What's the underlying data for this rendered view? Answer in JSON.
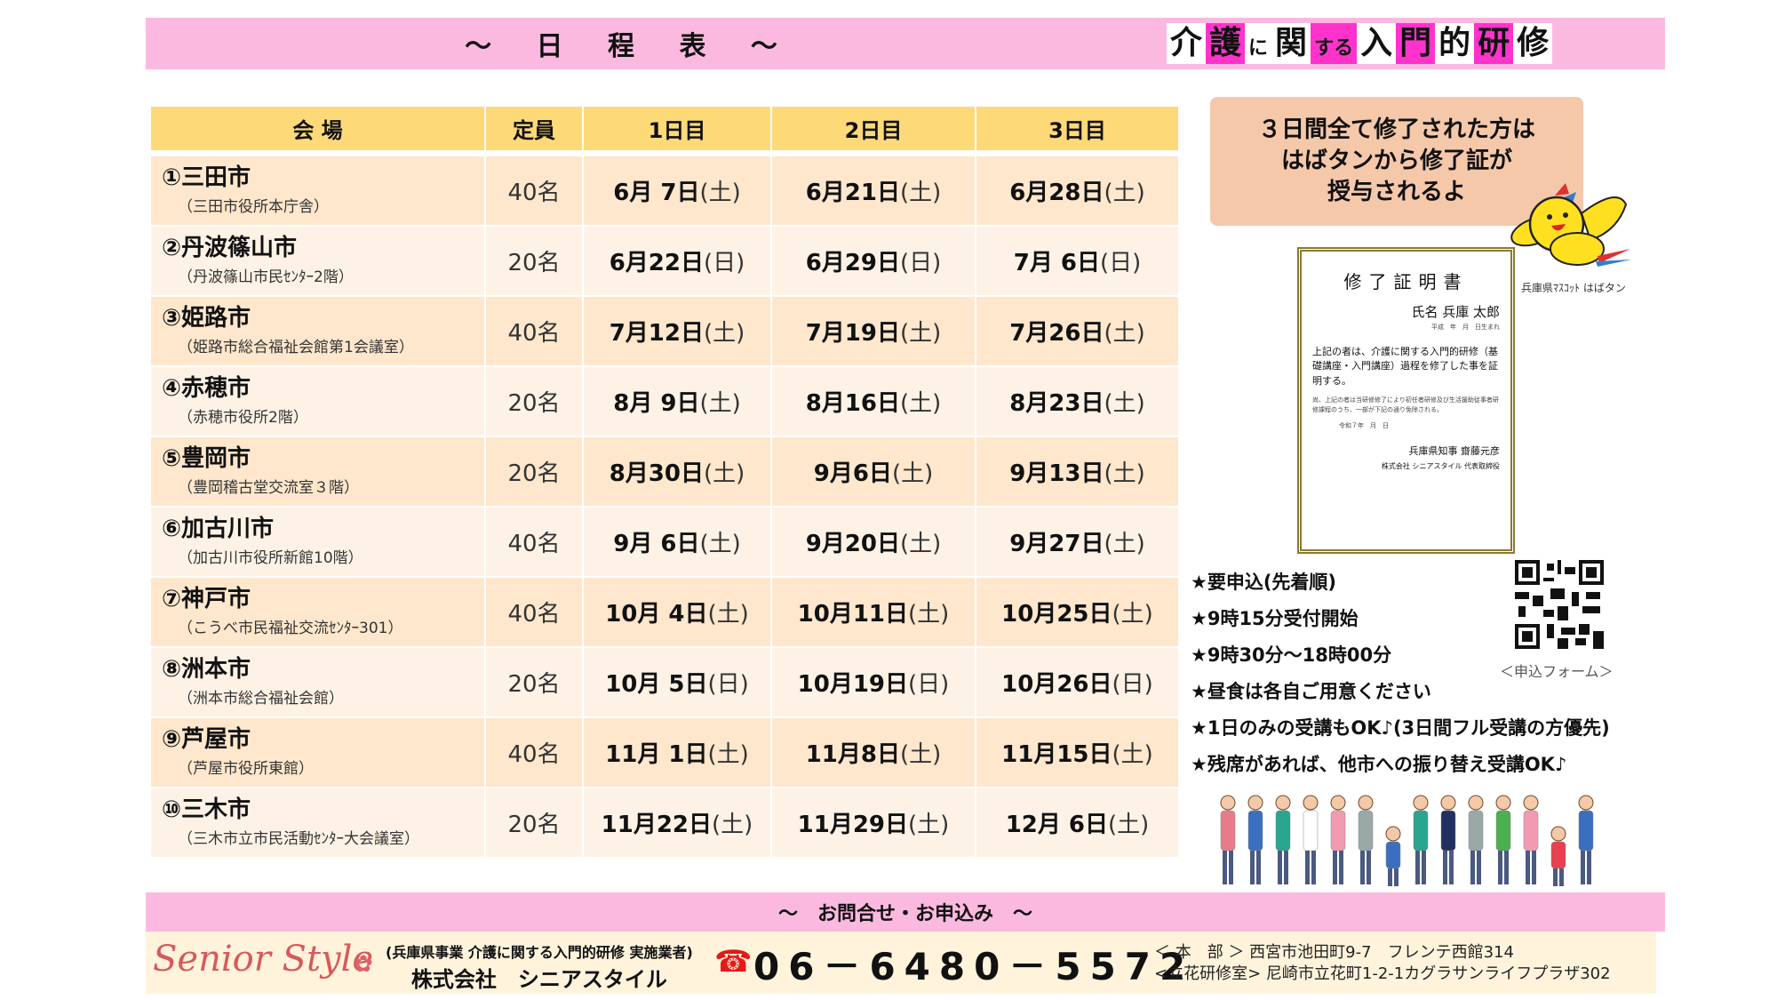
{
  "header": {
    "title": "～ 日 程 表 ～",
    "badge": [
      {
        "text": "介",
        "style": "w"
      },
      {
        "text": "護",
        "style": "pk"
      },
      {
        "text": "に",
        "style": "w sm"
      },
      {
        "text": "関",
        "style": "w"
      },
      {
        "text": "する",
        "style": "pk sm"
      },
      {
        "text": "入",
        "style": "w"
      },
      {
        "text": "門",
        "style": "pk"
      },
      {
        "text": "的",
        "style": "w"
      },
      {
        "text": "研",
        "style": "pk"
      },
      {
        "text": "修",
        "style": "w"
      }
    ]
  },
  "table": {
    "headers": [
      "会 場",
      "定員",
      "1日目",
      "2日目",
      "3日目"
    ],
    "rows": [
      {
        "name": "①三田市",
        "sub": "（三田市役所本庁舎）",
        "cap": "40名",
        "d1": "6月 7日",
        "w1": "(土)",
        "d2": "6月21日",
        "w2": "(土)",
        "d3": "6月28日",
        "w3": "(土)"
      },
      {
        "name": "②丹波篠山市",
        "sub": "（丹波篠山市民ｾﾝﾀｰ2階）",
        "cap": "20名",
        "d1": "6月22日",
        "w1": "(日)",
        "d2": "6月29日",
        "w2": "(日)",
        "d3": "7月 6日",
        "w3": "(日)"
      },
      {
        "name": "③姫路市",
        "sub": "（姫路市総合福祉会館第1会議室）",
        "cap": "40名",
        "d1": "7月12日",
        "w1": "(土)",
        "d2": "7月19日",
        "w2": "(土)",
        "d3": "7月26日",
        "w3": "(土)"
      },
      {
        "name": "④赤穂市",
        "sub": "（赤穂市役所2階）",
        "cap": "20名",
        "d1": "8月 9日",
        "w1": "(土)",
        "d2": "8月16日",
        "w2": "(土)",
        "d3": "8月23日",
        "w3": "(土)"
      },
      {
        "name": "⑤豊岡市",
        "sub": "（豊岡稽古堂交流室３階）",
        "cap": "20名",
        "d1": "8月30日",
        "w1": "(土)",
        "d2": "9月6日",
        "w2": "(土)",
        "d3": "9月13日",
        "w3": "(土)"
      },
      {
        "name": "⑥加古川市",
        "sub": "（加古川市役所新館10階）",
        "cap": "40名",
        "d1": "9月 6日",
        "w1": "(土)",
        "d2": "9月20日",
        "w2": "(土)",
        "d3": "9月27日",
        "w3": "(土)"
      },
      {
        "name": "⑦神戸市",
        "sub": "（こうべ市民福祉交流ｾﾝﾀｰ301）",
        "cap": "40名",
        "d1": "10月 4日",
        "w1": "(土)",
        "d2": "10月11日",
        "w2": "(土)",
        "d3": "10月25日",
        "w3": "(土)"
      },
      {
        "name": "⑧洲本市",
        "sub": "（洲本市総合福祉会館）",
        "cap": "20名",
        "d1": "10月 5日",
        "w1": "(日)",
        "d2": "10月19日",
        "w2": "(日)",
        "d3": "10月26日",
        "w3": "(日)"
      },
      {
        "name": "⑨芦屋市",
        "sub": "（芦屋市役所東館）",
        "cap": "40名",
        "d1": "11月 1日",
        "w1": "(土)",
        "d2": "11月8日",
        "w2": "(土)",
        "d3": "11月15日",
        "w3": "(土)"
      },
      {
        "name": "⑩三木市",
        "sub": "（三木市立市民活動ｾﾝﾀｰ大会議室）",
        "cap": "20名",
        "d1": "11月22日",
        "w1": "(土)",
        "d2": "11月29日",
        "w2": "(土)",
        "d3": "12月 6日",
        "w3": "(土)"
      }
    ]
  },
  "callout": {
    "lines": [
      "３日間全て修了された方は",
      "はばタンから修了証が",
      "授与されるよ"
    ]
  },
  "mascot": {
    "caption": "兵庫県ﾏｽｺｯﾄ はばタン"
  },
  "certificate": {
    "title": "修了証明書",
    "name": "氏名 兵庫 太郎",
    "born": "平成　年　月　日生まれ",
    "body": "上記の者は、介護に関する入門的研修（基礎講座・入門講座）過程を修了した事を証明する。",
    "note": "尚、上記の者は当研修修了により初任者研修及び生活援助従事者研修課程のうち、一部が下記の通り免除される。",
    "date": "令和７年　月　日",
    "signer": "兵庫県知事 齋藤元彦",
    "company": "株式会社 シニアスタイル 代表取締役"
  },
  "notes": [
    "★要申込(先着順)",
    "★9時15分受付開始",
    "★9時30分～18時00分",
    "★昼食は各自ご用意ください",
    "★1日のみの受講もOK♪(3日間フル受講の方優先)",
    "★残席があれば、他市への振り替え受講OK♪"
  ],
  "qr": {
    "caption": "＜申込フォーム＞"
  },
  "footer": {
    "bar_title": "～　お問合せ・お申込み　～",
    "logo": "Senior Style",
    "org_line1": "(兵庫県事業 介護に関する入門的研修 実施業者)",
    "org_line2": "株式会社　シニアスタイル",
    "phone": "06－6480－5572",
    "address1": "＜ 本　部 ＞ 西宮市池田町9-7　フレンテ西館314",
    "address2": "<立花研修室> 尼崎市立花町1-2-1カグラサンライフプラザ302"
  },
  "colors": {
    "pink_bar": "#fbb9e0",
    "magenta": "#ff33cc",
    "table_header": "#fdd978",
    "row_odd": "#fee7cc",
    "row_even": "#fef2e6",
    "callout": "#f5c8aa",
    "footer_cream": "#fff3dc",
    "phone_red": "#e81818"
  }
}
